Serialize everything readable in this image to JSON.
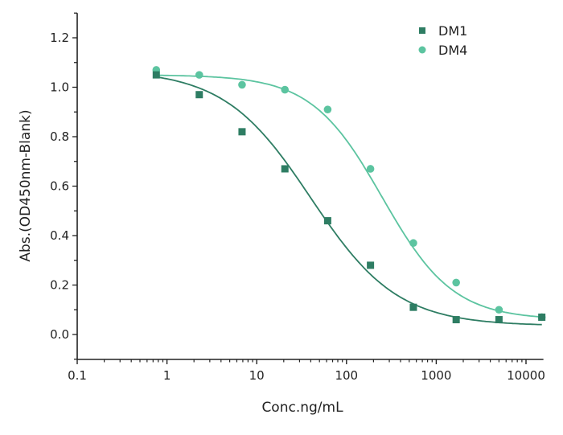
{
  "chart_data": {
    "type": "scatter",
    "title": "",
    "xlabel": "Conc.ng/mL",
    "ylabel": "Abs.(OD450nm-Blank)",
    "x_scale": "log",
    "xlim": [
      0.1,
      15000
    ],
    "ylim": [
      -0.1,
      1.3
    ],
    "x_ticks": [
      0.1,
      1,
      10,
      100,
      1000,
      10000
    ],
    "x_tick_labels": [
      "0.1",
      "1",
      "10",
      "100",
      "1000",
      "10000"
    ],
    "y_ticks": [
      0.0,
      0.2,
      0.4,
      0.6,
      0.8,
      1.0,
      1.2
    ],
    "y_tick_labels": [
      "0.0",
      "0.2",
      "0.4",
      "0.6",
      "0.8",
      "1.0",
      "1.2"
    ],
    "grid": false,
    "legend_position": "top-right",
    "x": [
      0.76,
      2.29,
      6.86,
      20.6,
      61.7,
      185,
      556,
      1667,
      5000,
      15000
    ],
    "series": [
      {
        "name": "DM1",
        "marker": "square",
        "color": "#2e7d63",
        "values": [
          1.05,
          0.97,
          0.82,
          0.67,
          0.46,
          0.28,
          0.11,
          0.06,
          0.06,
          0.07
        ],
        "fit": {
          "top": 1.07,
          "bottom": 0.035,
          "ec50": 40,
          "hill": 0.9
        }
      },
      {
        "name": "DM4",
        "marker": "circle",
        "color": "#5cc4a0",
        "values": [
          1.07,
          1.05,
          1.01,
          0.99,
          0.91,
          0.67,
          0.37,
          0.21,
          0.1,
          0.07
        ],
        "fit": {
          "top": 1.05,
          "bottom": 0.06,
          "ec50": 250,
          "hill": 1.1
        }
      }
    ]
  }
}
